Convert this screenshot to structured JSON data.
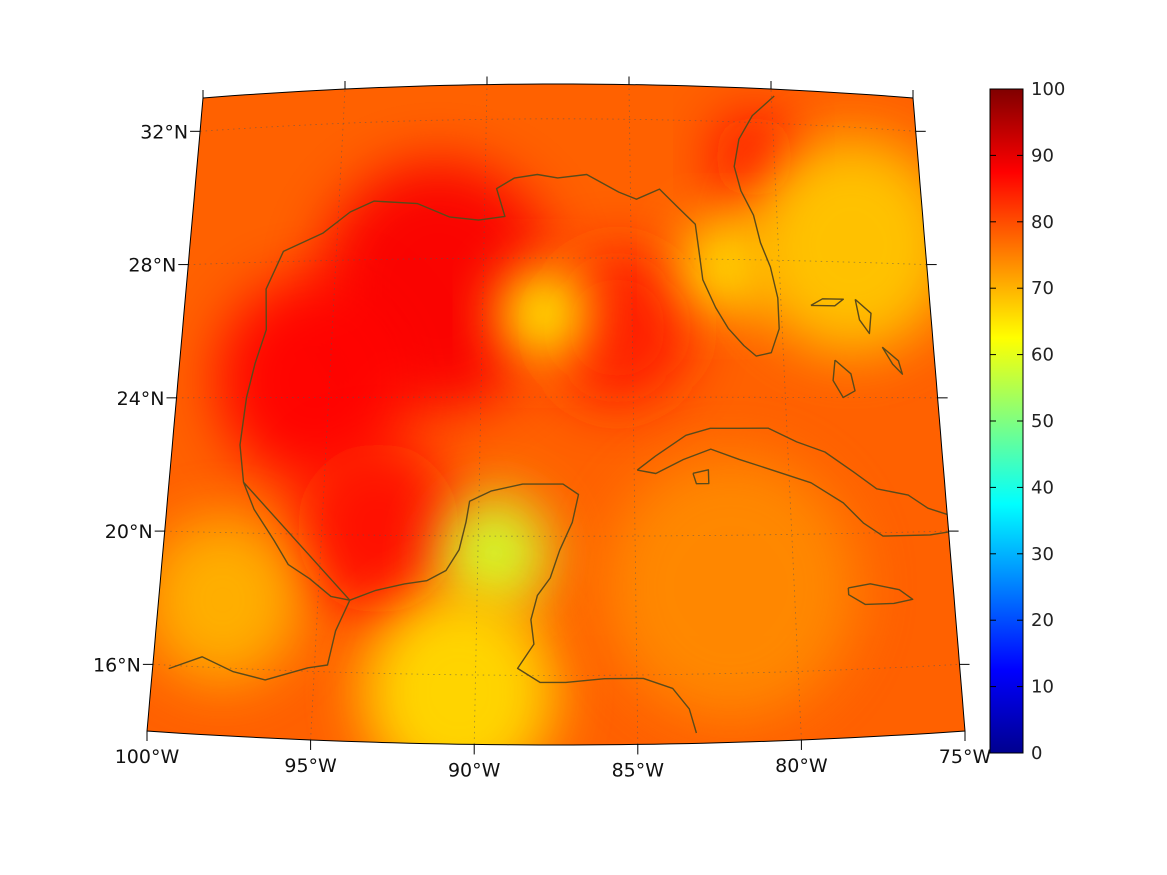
{
  "map": {
    "projection": "lambert conformal conic",
    "extent": {
      "lon_min": -100,
      "lon_max": -75,
      "lat_min": 14,
      "lat_max": 33
    },
    "lat_labels": [
      {
        "lat": 32,
        "text": "32°N"
      },
      {
        "lat": 28,
        "text": "28°N"
      },
      {
        "lat": 24,
        "text": "24°N"
      },
      {
        "lat": 20,
        "text": "20°N"
      },
      {
        "lat": 16,
        "text": "16°N"
      }
    ],
    "lon_labels": [
      {
        "lon": -100,
        "text": "100°W"
      },
      {
        "lon": -95,
        "text": "95°W"
      },
      {
        "lon": -90,
        "text": "90°W"
      },
      {
        "lon": -85,
        "text": "85°W"
      },
      {
        "lon": -80,
        "text": "80°W"
      },
      {
        "lon": -75,
        "text": "75°W"
      }
    ],
    "coastline_color": "#5a4a1a",
    "graticule": "dotted",
    "field_features": [
      {
        "feature": "background",
        "value": 78
      },
      {
        "feature": "northern-gulf-core",
        "value": 88
      },
      {
        "feature": "western-gulf-core",
        "value": 87
      },
      {
        "feature": "campeche-core",
        "value": 86
      },
      {
        "feature": "eastern-gulf-loop",
        "value": 85
      },
      {
        "feature": "north-atlantic-coast",
        "value": 86
      },
      {
        "feature": "central-gulf-minimum",
        "value": 63
      },
      {
        "feature": "florida-peninsula",
        "value": 65
      },
      {
        "feature": "atlantic-east",
        "value": 68
      },
      {
        "feature": "yucatan-peninsula",
        "value": 58
      },
      {
        "feature": "central-america",
        "value": 66
      },
      {
        "feature": "western-caribbean",
        "value": 74
      },
      {
        "feature": "mexico-highlands",
        "value": 70
      }
    ]
  },
  "colorbar": {
    "colormap": "jet",
    "min": 0,
    "max": 100,
    "ticks": [
      "100",
      "90",
      "80",
      "70",
      "60",
      "50",
      "40",
      "30",
      "20",
      "10",
      "0"
    ]
  }
}
